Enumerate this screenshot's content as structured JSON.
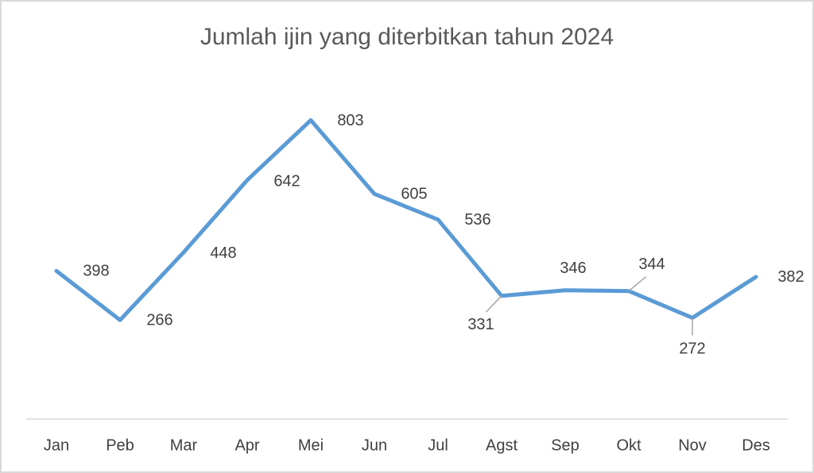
{
  "chart_data": {
    "type": "line",
    "title": "Jumlah ijin yang diterbitkan tahun 2024",
    "categories": [
      "Jan",
      "Peb",
      "Mar",
      "Apr",
      "Mei",
      "Jun",
      "Jul",
      "Agst",
      "Sep",
      "Okt",
      "Nov",
      "Des"
    ],
    "series": [
      {
        "name": "Jumlah ijin",
        "color": "#5b9bd5",
        "values": [
          398,
          266,
          448,
          642,
          803,
          605,
          536,
          331,
          346,
          344,
          272,
          382
        ]
      }
    ],
    "ylim": [
      0,
      900
    ],
    "grid": false
  }
}
